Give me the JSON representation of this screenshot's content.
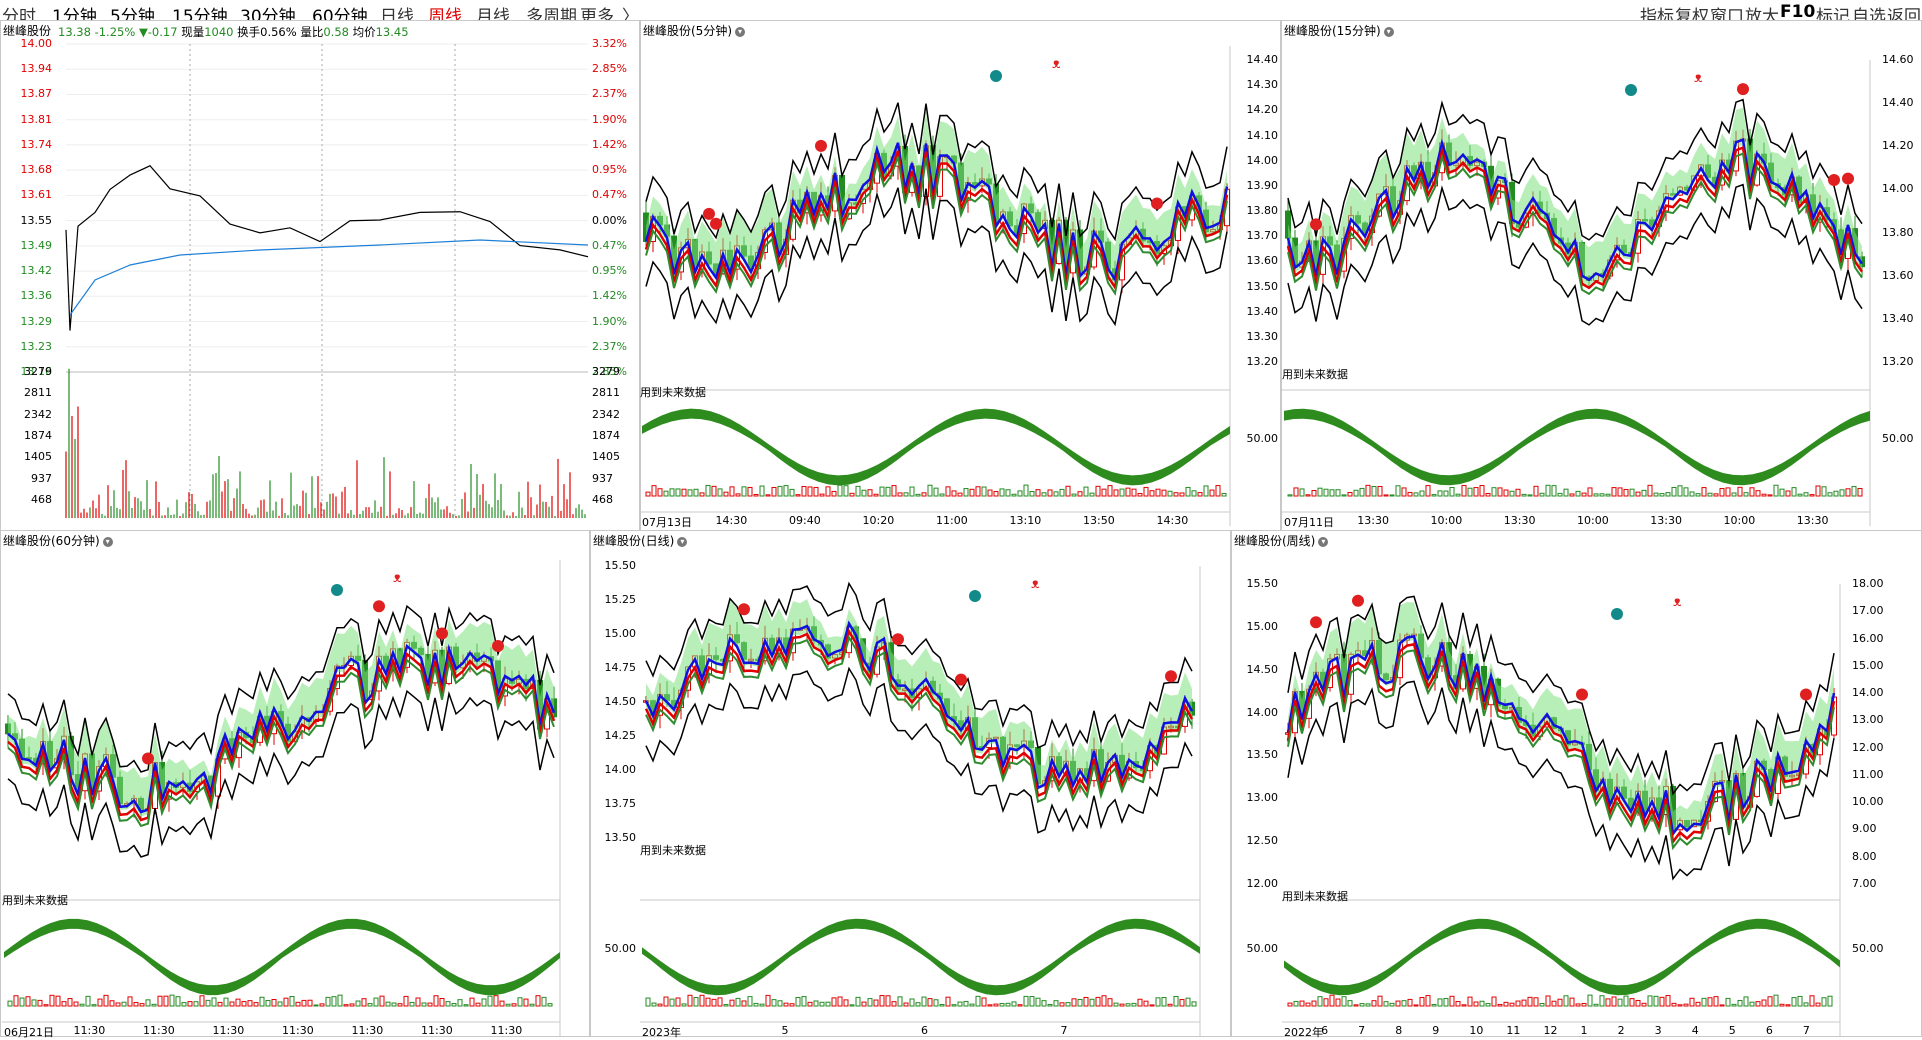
{
  "periods": [
    {
      "label": "分时",
      "color": "#333"
    },
    {
      "label": "1分钟",
      "color": "#000"
    },
    {
      "label": "5分钟",
      "color": "#000"
    },
    {
      "label": "15分钟",
      "color": "#000"
    },
    {
      "label": "30分钟",
      "color": "#000"
    },
    {
      "label": "60分钟",
      "color": "#000"
    },
    {
      "label": "日线",
      "color": "#333"
    },
    {
      "label": "周线",
      "color": "#e00000"
    },
    {
      "label": "月线",
      "color": "#333"
    },
    {
      "label": "多周期",
      "color": "#333"
    },
    {
      "label": "更多",
      "color": "#333"
    }
  ],
  "more_chevron": "〉",
  "tools": [
    "指标",
    "复权",
    "窗口",
    "放大",
    "F10",
    "标记",
    "自选",
    "返回"
  ],
  "intraday": {
    "title": "继峰股份",
    "price": "13.38",
    "pct": "-1.25%",
    "change": "▼-0.17",
    "vol_label": "现量",
    "vol": "1040",
    "turnover_label": "换手",
    "turnover": "0.56%",
    "ratio_label": "量比",
    "ratio": "0.58",
    "avg_label": "均价",
    "avg": "13.45",
    "price_ticks": [
      "14.00",
      "13.94",
      "13.87",
      "13.81",
      "13.74",
      "13.68",
      "13.61",
      "13.55",
      "13.49",
      "13.42",
      "13.36",
      "13.29",
      "13.23",
      "13.16"
    ],
    "pct_ticks": [
      "3.32%",
      "2.85%",
      "2.37%",
      "1.90%",
      "1.42%",
      "0.95%",
      "0.47%",
      "0.00%",
      "0.47%",
      "0.95%",
      "1.42%",
      "1.90%",
      "2.37%",
      "2.85%"
    ],
    "vol_ticks": [
      "3279",
      "2811",
      "2342",
      "1874",
      "1405",
      "937",
      "468"
    ]
  },
  "panels": [
    {
      "id": "m5",
      "title": "继峰股份(5分钟)",
      "note": "用到未来数据",
      "price_ticks": [],
      "x_labels": [
        "07月13日",
        "14:30",
        "09:40",
        "10:20",
        "11:00",
        "13:10",
        "13:50",
        "14:30"
      ]
    },
    {
      "id": "m15",
      "title": "继峰股份(15分钟)",
      "note": "用到未来数据",
      "price_ticks": [
        "14.40",
        "14.30",
        "14.20",
        "14.10",
        "14.00",
        "13.90",
        "13.80",
        "13.70",
        "13.60",
        "13.50",
        "13.40",
        "13.30",
        "13.20"
      ],
      "right_ticks": [
        "14.60",
        "14.40",
        "14.20",
        "14.00",
        "13.80",
        "13.60",
        "13.40",
        "13.20"
      ],
      "ind_tick": "50.00",
      "right_ind_tick": "50.00",
      "x_labels": [
        "07月11日",
        "13:30",
        "10:00",
        "13:30",
        "10:00",
        "13:30",
        "10:00",
        "13:30"
      ]
    },
    {
      "id": "m60",
      "title": "继峰股份(60分钟)",
      "note": "用到未来数据",
      "price_ticks": [],
      "x_labels": [
        "06月21日",
        "11:30",
        "11:30",
        "11:30",
        "11:30",
        "11:30",
        "11:30",
        "11:30"
      ]
    },
    {
      "id": "day",
      "title": "继峰股份(日线)",
      "note": "用到未来数据",
      "price_ticks": [
        "15.50",
        "15.25",
        "15.00",
        "14.75",
        "14.50",
        "14.25",
        "14.00",
        "13.75",
        "13.50"
      ],
      "ind_tick": "50.00",
      "x_labels": [
        "2023年",
        "5",
        "6",
        "7"
      ]
    },
    {
      "id": "week",
      "title": "继峰股份(周线)",
      "note": "用到未来数据",
      "price_ticks": [
        "15.50",
        "15.00",
        "14.50",
        "14.00",
        "13.50",
        "13.00",
        "12.50",
        "12.00"
      ],
      "right_ticks": [
        "18.00",
        "17.00",
        "16.00",
        "15.00",
        "14.00",
        "13.00",
        "12.00",
        "11.00",
        "10.00",
        "9.00",
        "8.00",
        "7.00"
      ],
      "ind_tick": "50.00",
      "right_ind_tick": "50.00",
      "x_labels": [
        "2022年",
        "6",
        "7",
        "8",
        "9",
        "10",
        "11",
        "12",
        "1",
        "2",
        "3",
        "4",
        "5",
        "6",
        "7"
      ]
    }
  ],
  "colors": {
    "up": "#e00000",
    "down": "#228b22",
    "ma_blue": "#1010e0",
    "band": "#7ee07e",
    "band2": "#9ee6ea"
  }
}
